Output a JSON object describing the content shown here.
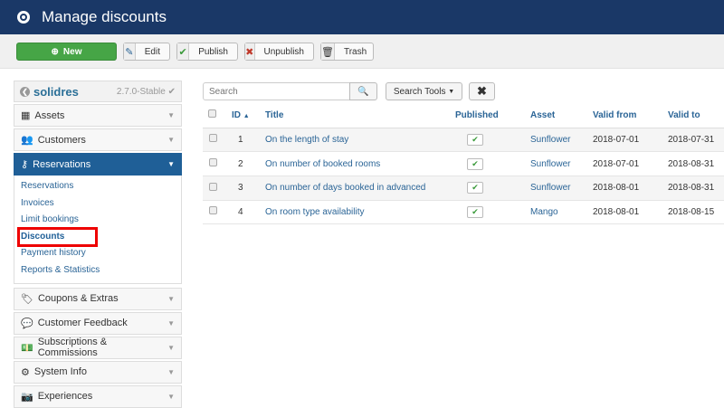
{
  "header": {
    "title": "Manage discounts",
    "icon": "target-icon"
  },
  "toolbar": {
    "new": "New",
    "edit": "Edit",
    "publish": "Publish",
    "unpublish": "Unpublish",
    "trash": "Trash"
  },
  "sidebar": {
    "brand": "solidres",
    "version": "2.7.0-Stable",
    "items": [
      {
        "label": "Assets"
      },
      {
        "label": "Customers"
      },
      {
        "label": "Reservations"
      },
      {
        "label": "Coupons & Extras"
      },
      {
        "label": "Customer Feedback"
      },
      {
        "label": "Subscriptions & Commissions"
      },
      {
        "label": "System Info"
      },
      {
        "label": "Experiences"
      }
    ],
    "submenu": [
      "Reservations",
      "Invoices",
      "Limit bookings",
      "Discounts",
      "Payment history",
      "Reports & Statistics"
    ]
  },
  "search": {
    "placeholder": "Search",
    "tools": "Search Tools"
  },
  "table": {
    "headers": {
      "id": "ID",
      "title": "Title",
      "published": "Published",
      "asset": "Asset",
      "valid_from": "Valid from",
      "valid_to": "Valid to"
    },
    "rows": [
      {
        "id": "1",
        "title": "On the length of stay",
        "asset": "Sunflower",
        "from": "2018-07-01",
        "to": "2018-07-31",
        "published": true
      },
      {
        "id": "2",
        "title": "On number of booked rooms",
        "asset": "Sunflower",
        "from": "2018-07-01",
        "to": "2018-08-31",
        "published": true
      },
      {
        "id": "3",
        "title": "On number of days booked in advanced",
        "asset": "Sunflower",
        "from": "2018-08-01",
        "to": "2018-08-31",
        "published": true
      },
      {
        "id": "4",
        "title": "On room type availability",
        "asset": "Mango",
        "from": "2018-08-01",
        "to": "2018-08-15",
        "published": true
      }
    ]
  },
  "colors": {
    "header": "#1a3867",
    "new_button": "#46a546",
    "active_menu": "#1f5f97",
    "highlight": "#e00000"
  }
}
